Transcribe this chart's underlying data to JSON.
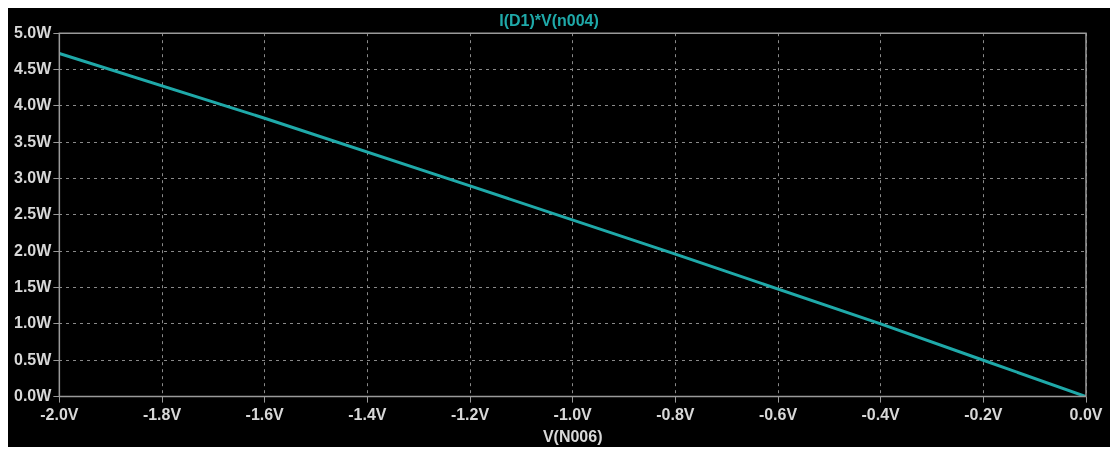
{
  "chart_data": {
    "type": "line",
    "title": "I(D1)*V(n004)",
    "xlabel": "V(N006)",
    "x": [
      -2.0,
      -1.6,
      -1.2,
      -0.8,
      -0.4,
      -0.2,
      0.0
    ],
    "series": [
      {
        "color": "#1fa9a9",
        "values": [
          4.72,
          3.83,
          2.9,
          1.96,
          1.0,
          0.5,
          0.0
        ]
      }
    ],
    "xlim": [
      -2.0,
      0.0
    ],
    "xticks": [
      {
        "value": -2.0,
        "label": "-2.0V"
      },
      {
        "value": -1.8,
        "label": "-1.8V"
      },
      {
        "value": -1.6,
        "label": "-1.6V"
      },
      {
        "value": -1.4,
        "label": "-1.4V"
      },
      {
        "value": -1.2,
        "label": "-1.2V"
      },
      {
        "value": -1.0,
        "label": "-1.0V"
      },
      {
        "value": -0.8,
        "label": "-0.8V"
      },
      {
        "value": -0.6,
        "label": "-0.6V"
      },
      {
        "value": -0.4,
        "label": "-0.4V"
      },
      {
        "value": -0.2,
        "label": "-0.2V"
      },
      {
        "value": 0.0,
        "label": "0.0V"
      }
    ],
    "ylim": [
      0,
      5
    ],
    "yticks": [
      {
        "value": 0,
        "label": "0.0W"
      },
      {
        "value": 0.5,
        "label": "0.5W"
      },
      {
        "value": 1,
        "label": "1.0W"
      },
      {
        "value": 1.5,
        "label": "1.5W"
      },
      {
        "value": 2,
        "label": "2.0W"
      },
      {
        "value": 2.5,
        "label": "2.5W"
      },
      {
        "value": 3,
        "label": "3.0W"
      },
      {
        "value": 3.5,
        "label": "3.5W"
      },
      {
        "value": 4,
        "label": "4.0W"
      },
      {
        "value": 4.5,
        "label": "4.5W"
      },
      {
        "value": 5,
        "label": "5.0W"
      }
    ],
    "grid": true,
    "legend": false,
    "marker": "none",
    "line_style": "solid"
  }
}
